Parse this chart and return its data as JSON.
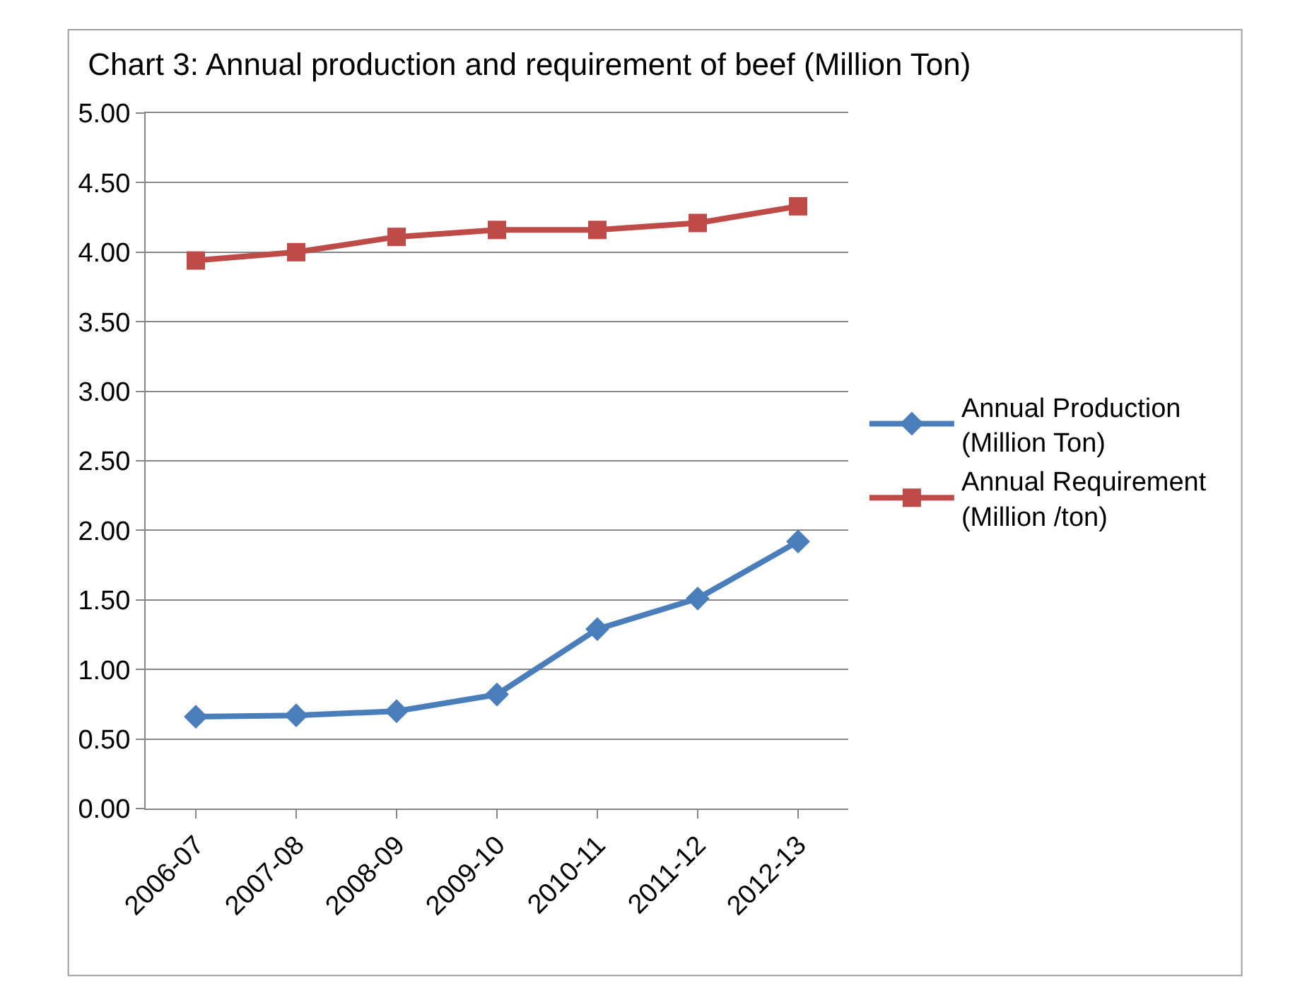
{
  "chart_data": {
    "type": "line",
    "title": "Chart 3: Annual production and requirement of beef (Million Ton)",
    "categories": [
      "2006-07",
      "2007-08",
      "2008-09",
      "2009-10",
      "2010-11",
      "2011-12",
      "2012-13"
    ],
    "series": [
      {
        "name": "Annual Production (Million Ton)",
        "color": "#4a7ebb",
        "marker": "diamond",
        "values": [
          0.66,
          0.67,
          0.7,
          0.82,
          1.29,
          1.51,
          1.92
        ]
      },
      {
        "name": "Annual Requirement (Million /ton)",
        "color": "#be4b48",
        "marker": "square",
        "values": [
          3.94,
          4.0,
          4.11,
          4.16,
          4.16,
          4.21,
          4.33
        ]
      }
    ],
    "ylim": [
      0,
      5
    ],
    "yticks": [
      {
        "value": 0,
        "label": "0.00"
      },
      {
        "value": 0.5,
        "label": "0.50"
      },
      {
        "value": 1,
        "label": "1.00"
      },
      {
        "value": 1.5,
        "label": "1.50"
      },
      {
        "value": 2,
        "label": "2.00"
      },
      {
        "value": 2.5,
        "label": "2.50"
      },
      {
        "value": 3,
        "label": "3.00"
      },
      {
        "value": 3.5,
        "label": "3.50"
      },
      {
        "value": 4,
        "label": "4.00"
      },
      {
        "value": 4.5,
        "label": "4.50"
      },
      {
        "value": 5,
        "label": "5.00"
      }
    ],
    "grid": "y",
    "legend": "right",
    "line_style": "solid"
  }
}
